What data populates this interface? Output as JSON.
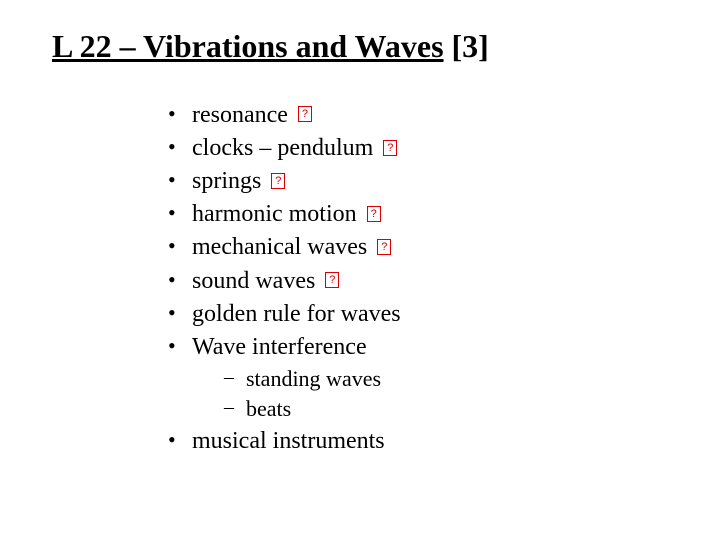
{
  "title": {
    "underlined": "L 22 – Vibrations and Waves",
    "suffix": " [3]",
    "fontsize": 32,
    "fontweight": "bold"
  },
  "checkIcon": {
    "borderColor": "#de0000",
    "textColor": "#de0000",
    "glyph": "?"
  },
  "items": [
    {
      "label": "resonance",
      "checked": true
    },
    {
      "label": "clocks – pendulum",
      "checked": true
    },
    {
      "label": "springs",
      "checked": true
    },
    {
      "label": "harmonic motion",
      "checked": true
    },
    {
      "label": "mechanical waves",
      "checked": true
    },
    {
      "label": "sound waves",
      "checked": true
    },
    {
      "label": "golden rule for waves",
      "checked": false
    },
    {
      "label": "Wave interference",
      "checked": false,
      "subitems": [
        {
          "label": "standing waves"
        },
        {
          "label": "beats"
        }
      ]
    },
    {
      "label": "musical instruments",
      "checked": false
    }
  ],
  "colors": {
    "background": "#ffffff",
    "text": "#000000",
    "accent": "#de0000"
  },
  "typography": {
    "fontFamily": "Times New Roman",
    "bulletFontSize": 24,
    "subBulletFontSize": 22
  }
}
